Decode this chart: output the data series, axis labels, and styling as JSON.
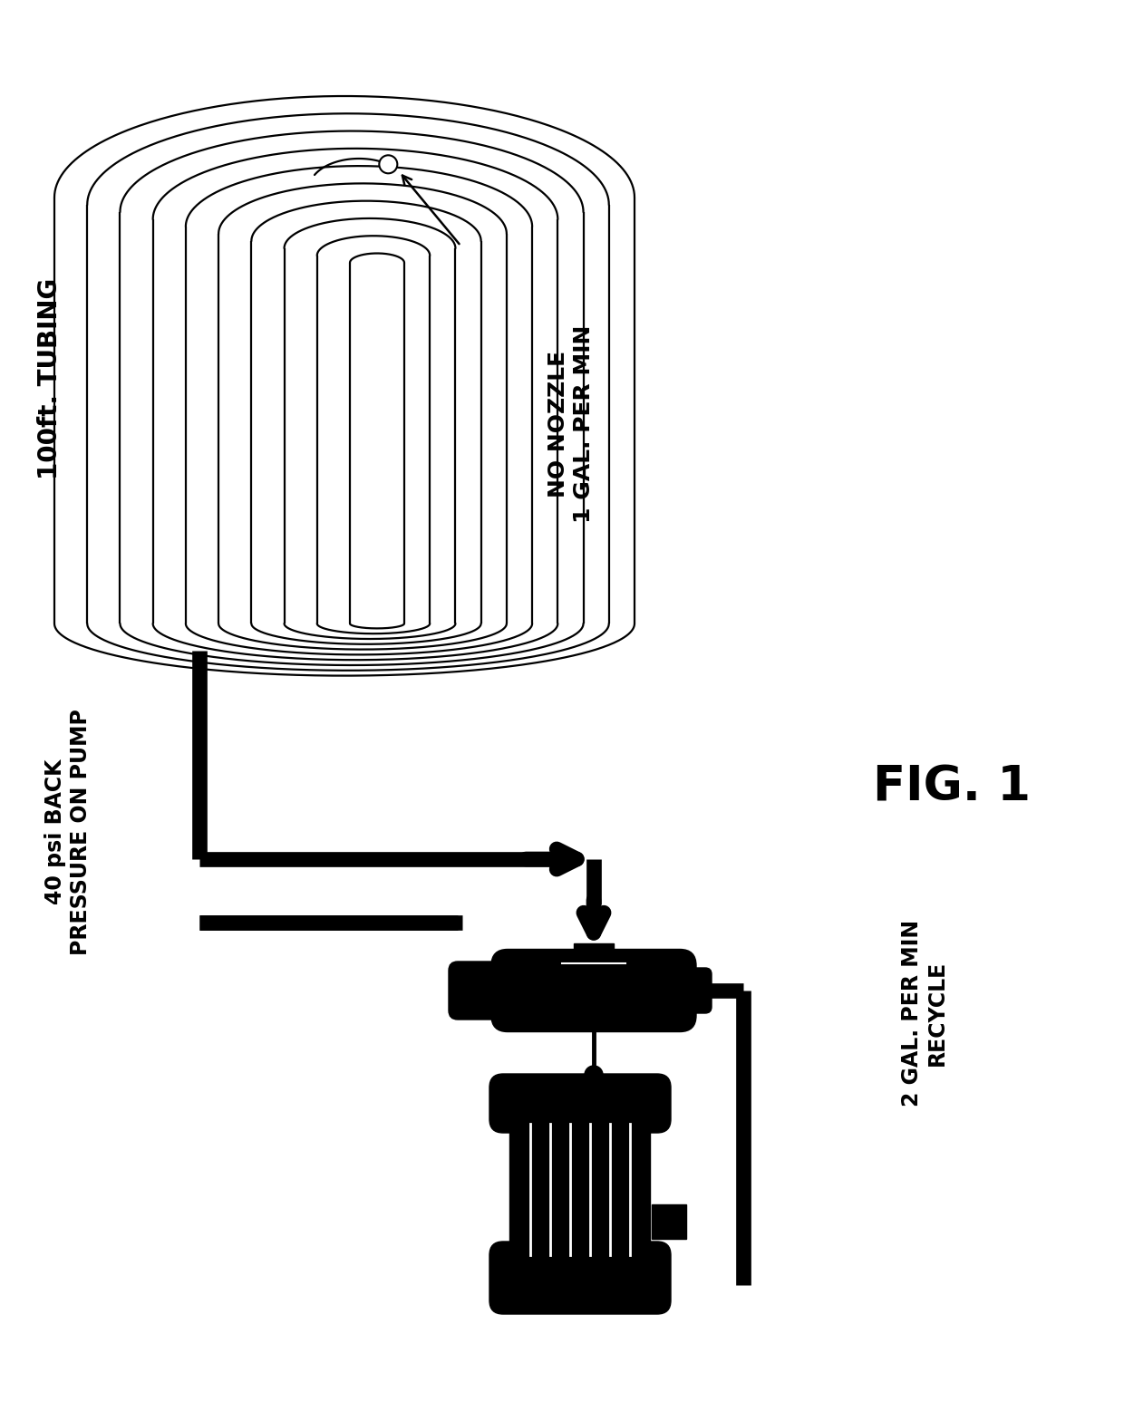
{
  "title": "FIG. 1",
  "label_100ft": "100ft. TUBING",
  "label_no_nozzle": "NO NOZZLE\n1 GAL. PER MIN",
  "label_40psi": "40 psi BACK\nPRESSURE ON PUMP",
  "label_2gal": "2 GAL. PER MIN\nRECYCLE",
  "bg_color": "#ffffff",
  "line_color": "#000000",
  "fig_width": 12.4,
  "fig_height": 15.68
}
